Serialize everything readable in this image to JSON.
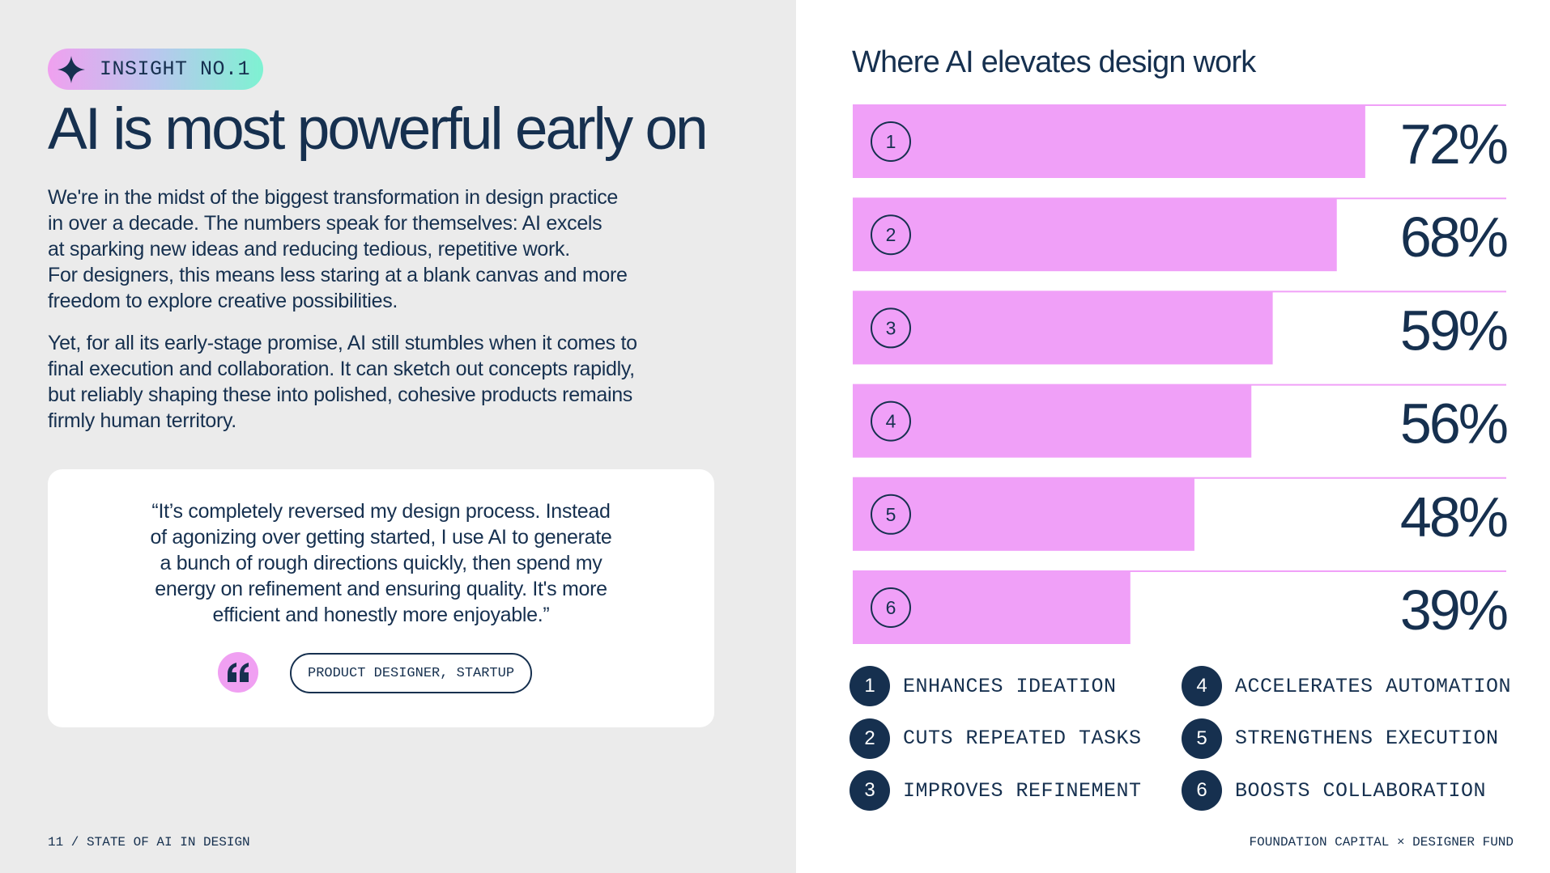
{
  "insight_badge": {
    "label": "INSIGHT NO.1",
    "icon": "sparkle-icon"
  },
  "headline": "AI is most powerful early on",
  "paragraph1": [
    "We're in the midst of the biggest transformation in design practice",
    "in over a decade. The numbers speak for themselves: AI excels",
    "at sparking new ideas and reducing tedious, repetitive work.",
    "For designers, this means less staring at a blank canvas and more",
    "freedom to explore creative possibilities."
  ],
  "paragraph2": [
    "Yet, for all its early-stage promise, AI still stumbles when it comes to",
    "final execution and collaboration. It can sketch out concepts rapidly,",
    "but reliably shaping these into polished, cohesive products remains",
    "firmly human territory."
  ],
  "quote": {
    "lines": [
      "“It’s completely reversed my design process. Instead",
      "of agonizing over getting started, I use AI to generate",
      "a bunch of rough directions quickly, then spend my",
      "energy on refinement and ensuring quality. It's more",
      "efficient and honestly more enjoyable.”"
    ],
    "attribution": "PRODUCT DESIGNER, STARTUP",
    "icon": "quote-mark-icon"
  },
  "footer": {
    "left": "11 / STATE OF AI IN DESIGN",
    "right": "FOUNDATION CAPITAL × DESIGNER FUND"
  },
  "chart_data": {
    "type": "bar",
    "orientation": "horizontal",
    "title": "Where AI elevates design work",
    "categories": [
      "1",
      "2",
      "3",
      "4",
      "5",
      "6"
    ],
    "values": [
      72,
      68,
      59,
      56,
      48,
      39
    ],
    "value_labels": [
      "72%",
      "68%",
      "59%",
      "56%",
      "48%",
      "39%"
    ],
    "xlim": [
      0,
      100
    ],
    "grid": false,
    "bar_color": "#f0a0f8",
    "legend_position": "bottom",
    "legend": [
      {
        "number": "1",
        "label": "ENHANCES IDEATION"
      },
      {
        "number": "2",
        "label": "CUTS REPEATED TASKS"
      },
      {
        "number": "3",
        "label": "IMPROVES REFINEMENT"
      },
      {
        "number": "4",
        "label": "ACCELERATES AUTOMATION"
      },
      {
        "number": "5",
        "label": "STRENGTHENS EXECUTION"
      },
      {
        "number": "6",
        "label": "BOOSTS COLLABORATION"
      }
    ]
  },
  "colors": {
    "navy": "#16304f",
    "pink": "#f0a0f8",
    "panel_gray": "#ebebeb"
  }
}
